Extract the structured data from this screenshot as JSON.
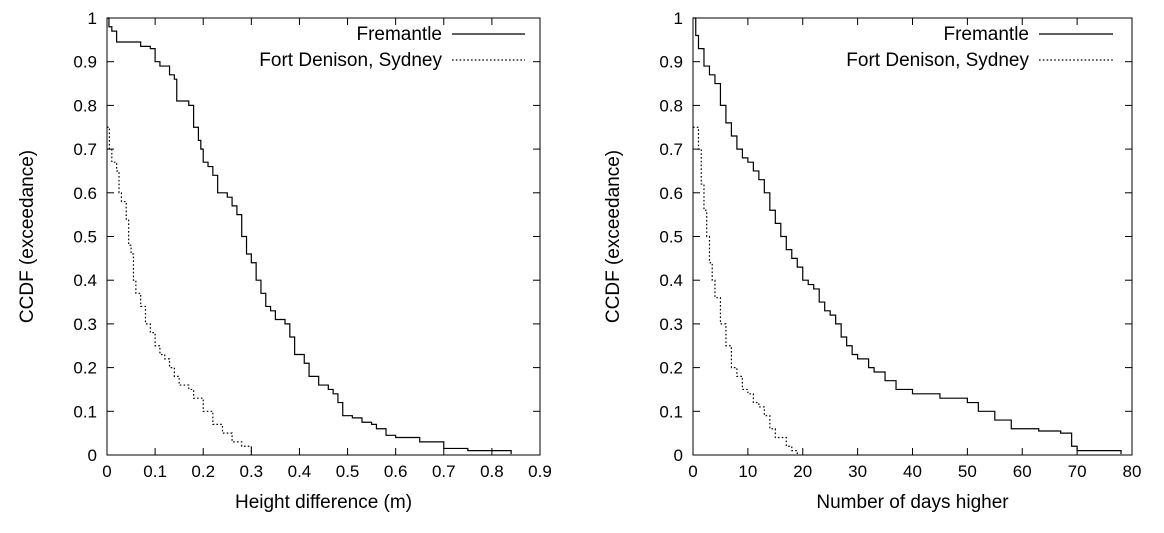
{
  "chart_data": [
    {
      "type": "line",
      "title": "",
      "xlabel": "Height difference (m)",
      "ylabel": "CCDF (exceedance)",
      "xlim": [
        0,
        0.9
      ],
      "ylim": [
        0,
        1
      ],
      "xticks": [
        "0",
        "0.1",
        "0.2",
        "0.3",
        "0.4",
        "0.5",
        "0.6",
        "0.7",
        "0.8",
        "0.9"
      ],
      "yticks": [
        "0",
        "0.1",
        "0.2",
        "0.3",
        "0.4",
        "0.5",
        "0.6",
        "0.7",
        "0.8",
        "0.9",
        "1"
      ],
      "grid": false,
      "legend_position": "top-right",
      "series": [
        {
          "name": "Fremantle",
          "style": "solid",
          "points": [
            [
              0,
              1
            ],
            [
              0.004,
              0.98
            ],
            [
              0.01,
              0.97
            ],
            [
              0.02,
              0.945
            ],
            [
              0.07,
              0.935
            ],
            [
              0.09,
              0.93
            ],
            [
              0.1,
              0.9
            ],
            [
              0.11,
              0.89
            ],
            [
              0.13,
              0.87
            ],
            [
              0.14,
              0.86
            ],
            [
              0.145,
              0.81
            ],
            [
              0.17,
              0.8
            ],
            [
              0.18,
              0.75
            ],
            [
              0.19,
              0.72
            ],
            [
              0.195,
              0.7
            ],
            [
              0.2,
              0.67
            ],
            [
              0.21,
              0.66
            ],
            [
              0.22,
              0.64
            ],
            [
              0.23,
              0.6
            ],
            [
              0.25,
              0.59
            ],
            [
              0.26,
              0.57
            ],
            [
              0.27,
              0.55
            ],
            [
              0.28,
              0.5
            ],
            [
              0.29,
              0.46
            ],
            [
              0.3,
              0.44
            ],
            [
              0.31,
              0.4
            ],
            [
              0.32,
              0.37
            ],
            [
              0.33,
              0.34
            ],
            [
              0.34,
              0.33
            ],
            [
              0.35,
              0.31
            ],
            [
              0.37,
              0.3
            ],
            [
              0.38,
              0.27
            ],
            [
              0.39,
              0.23
            ],
            [
              0.41,
              0.21
            ],
            [
              0.42,
              0.18
            ],
            [
              0.44,
              0.16
            ],
            [
              0.46,
              0.15
            ],
            [
              0.47,
              0.14
            ],
            [
              0.48,
              0.12
            ],
            [
              0.49,
              0.09
            ],
            [
              0.51,
              0.085
            ],
            [
              0.53,
              0.075
            ],
            [
              0.55,
              0.07
            ],
            [
              0.56,
              0.06
            ],
            [
              0.58,
              0.045
            ],
            [
              0.6,
              0.04
            ],
            [
              0.65,
              0.03
            ],
            [
              0.7,
              0.015
            ],
            [
              0.75,
              0.01
            ],
            [
              0.84,
              0.002
            ]
          ]
        },
        {
          "name": "Fort Denison, Sydney",
          "style": "dotted",
          "points": [
            [
              0,
              0.75
            ],
            [
              0.005,
              0.7
            ],
            [
              0.01,
              0.67
            ],
            [
              0.02,
              0.65
            ],
            [
              0.025,
              0.6
            ],
            [
              0.03,
              0.58
            ],
            [
              0.04,
              0.54
            ],
            [
              0.045,
              0.48
            ],
            [
              0.05,
              0.46
            ],
            [
              0.055,
              0.4
            ],
            [
              0.06,
              0.37
            ],
            [
              0.07,
              0.34
            ],
            [
              0.08,
              0.3
            ],
            [
              0.09,
              0.28
            ],
            [
              0.1,
              0.25
            ],
            [
              0.11,
              0.23
            ],
            [
              0.12,
              0.22
            ],
            [
              0.13,
              0.2
            ],
            [
              0.14,
              0.18
            ],
            [
              0.15,
              0.16
            ],
            [
              0.17,
              0.15
            ],
            [
              0.18,
              0.13
            ],
            [
              0.2,
              0.1
            ],
            [
              0.22,
              0.07
            ],
            [
              0.24,
              0.05
            ],
            [
              0.26,
              0.03
            ],
            [
              0.28,
              0.02
            ],
            [
              0.3,
              0
            ]
          ]
        }
      ]
    },
    {
      "type": "line",
      "title": "",
      "xlabel": "Number of days higher",
      "ylabel": "CCDF (exceedance)",
      "xlim": [
        0,
        80
      ],
      "ylim": [
        0,
        1
      ],
      "xticks": [
        "0",
        "10",
        "20",
        "30",
        "40",
        "50",
        "60",
        "70",
        "80"
      ],
      "yticks": [
        "0",
        "0.1",
        "0.2",
        "0.3",
        "0.4",
        "0.5",
        "0.6",
        "0.7",
        "0.8",
        "0.9",
        "1"
      ],
      "grid": false,
      "legend_position": "top-right",
      "series": [
        {
          "name": "Fremantle",
          "style": "solid",
          "points": [
            [
              0,
              1
            ],
            [
              0.5,
              0.96
            ],
            [
              1,
              0.93
            ],
            [
              2,
              0.89
            ],
            [
              3,
              0.87
            ],
            [
              4,
              0.85
            ],
            [
              5,
              0.8
            ],
            [
              6,
              0.76
            ],
            [
              7,
              0.73
            ],
            [
              8,
              0.7
            ],
            [
              9,
              0.68
            ],
            [
              10,
              0.67
            ],
            [
              11,
              0.65
            ],
            [
              12,
              0.63
            ],
            [
              13,
              0.6
            ],
            [
              14,
              0.56
            ],
            [
              15,
              0.53
            ],
            [
              16,
              0.5
            ],
            [
              17,
              0.47
            ],
            [
              18,
              0.45
            ],
            [
              19,
              0.43
            ],
            [
              20,
              0.4
            ],
            [
              21,
              0.39
            ],
            [
              22,
              0.38
            ],
            [
              23,
              0.35
            ],
            [
              24,
              0.33
            ],
            [
              25,
              0.32
            ],
            [
              26,
              0.3
            ],
            [
              27,
              0.27
            ],
            [
              28,
              0.25
            ],
            [
              29,
              0.23
            ],
            [
              30,
              0.22
            ],
            [
              32,
              0.2
            ],
            [
              33,
              0.19
            ],
            [
              35,
              0.17
            ],
            [
              37,
              0.15
            ],
            [
              40,
              0.14
            ],
            [
              45,
              0.13
            ],
            [
              50,
              0.12
            ],
            [
              52,
              0.1
            ],
            [
              55,
              0.08
            ],
            [
              58,
              0.06
            ],
            [
              63,
              0.055
            ],
            [
              67,
              0.05
            ],
            [
              69,
              0.02
            ],
            [
              70,
              0.01
            ],
            [
              78,
              0.002
            ]
          ]
        },
        {
          "name": "Fort Denison, Sydney",
          "style": "dotted",
          "points": [
            [
              0,
              0.75
            ],
            [
              1,
              0.7
            ],
            [
              1.5,
              0.62
            ],
            [
              2,
              0.56
            ],
            [
              2.5,
              0.5
            ],
            [
              3,
              0.44
            ],
            [
              3.5,
              0.4
            ],
            [
              4,
              0.36
            ],
            [
              5,
              0.3
            ],
            [
              6,
              0.25
            ],
            [
              7,
              0.2
            ],
            [
              8,
              0.18
            ],
            [
              9,
              0.15
            ],
            [
              10,
              0.14
            ],
            [
              11,
              0.12
            ],
            [
              12,
              0.11
            ],
            [
              13,
              0.09
            ],
            [
              14,
              0.06
            ],
            [
              15,
              0.04
            ],
            [
              17,
              0.02
            ],
            [
              18,
              0.01
            ],
            [
              19,
              0
            ]
          ]
        }
      ]
    }
  ]
}
